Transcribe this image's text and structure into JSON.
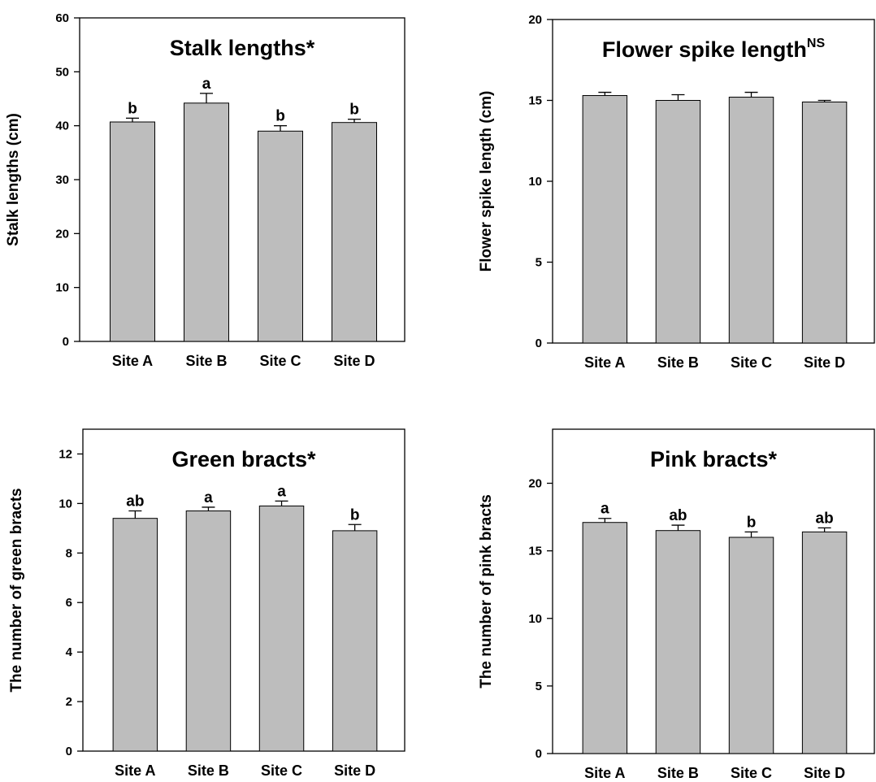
{
  "chart_data": [
    {
      "type": "bar",
      "title": "Stalk lengths*",
      "ylabel": "Stalk lengths  (cm)",
      "categories": [
        "Site A",
        "Site B",
        "Site C",
        "Site D"
      ],
      "values": [
        40.7,
        44.2,
        39.0,
        40.6
      ],
      "errors": [
        0.7,
        1.8,
        1.0,
        0.6
      ],
      "letters": [
        "b",
        "a",
        "b",
        "b"
      ],
      "color": "#bdbdbd",
      "ylim": [
        0,
        60
      ],
      "yticks": [
        0,
        10,
        20,
        30,
        40,
        50,
        60
      ]
    },
    {
      "type": "bar",
      "title": "Flower spike length",
      "title_superscript": "NS",
      "ylabel": "Flower spike length (cm)",
      "categories": [
        "Site A",
        "Site B",
        "Site C",
        "Site D"
      ],
      "values": [
        15.3,
        15.0,
        15.2,
        14.9
      ],
      "errors": [
        0.2,
        0.35,
        0.3,
        0.1
      ],
      "color": "#bdbdbd",
      "ylim": [
        0,
        20
      ],
      "yticks": [
        0,
        5,
        10,
        15,
        20
      ]
    },
    {
      "type": "bar",
      "title": "Green bracts*",
      "ylabel": "The number of green bracts",
      "categories": [
        "Site A",
        "Site B",
        "Site C",
        "Site D"
      ],
      "values": [
        9.4,
        9.7,
        9.9,
        8.9
      ],
      "errors": [
        0.3,
        0.15,
        0.2,
        0.25
      ],
      "letters": [
        "ab",
        "a",
        "a",
        "b"
      ],
      "color": "#bdbdbd",
      "ylim": [
        0,
        13
      ],
      "yticks": [
        0,
        2,
        4,
        6,
        8,
        10,
        12
      ]
    },
    {
      "type": "bar",
      "title": "Pink bracts*",
      "ylabel": "The number of pink bracts",
      "categories": [
        "Site A",
        "Site B",
        "Site C",
        "Site D"
      ],
      "values": [
        17.1,
        16.5,
        16.0,
        16.4
      ],
      "errors": [
        0.3,
        0.4,
        0.4,
        0.3
      ],
      "letters": [
        "a",
        "ab",
        "b",
        "ab"
      ],
      "color": "#bdbdbd",
      "ylim": [
        0,
        24
      ],
      "yticks": [
        0,
        5,
        10,
        15,
        20
      ]
    }
  ]
}
